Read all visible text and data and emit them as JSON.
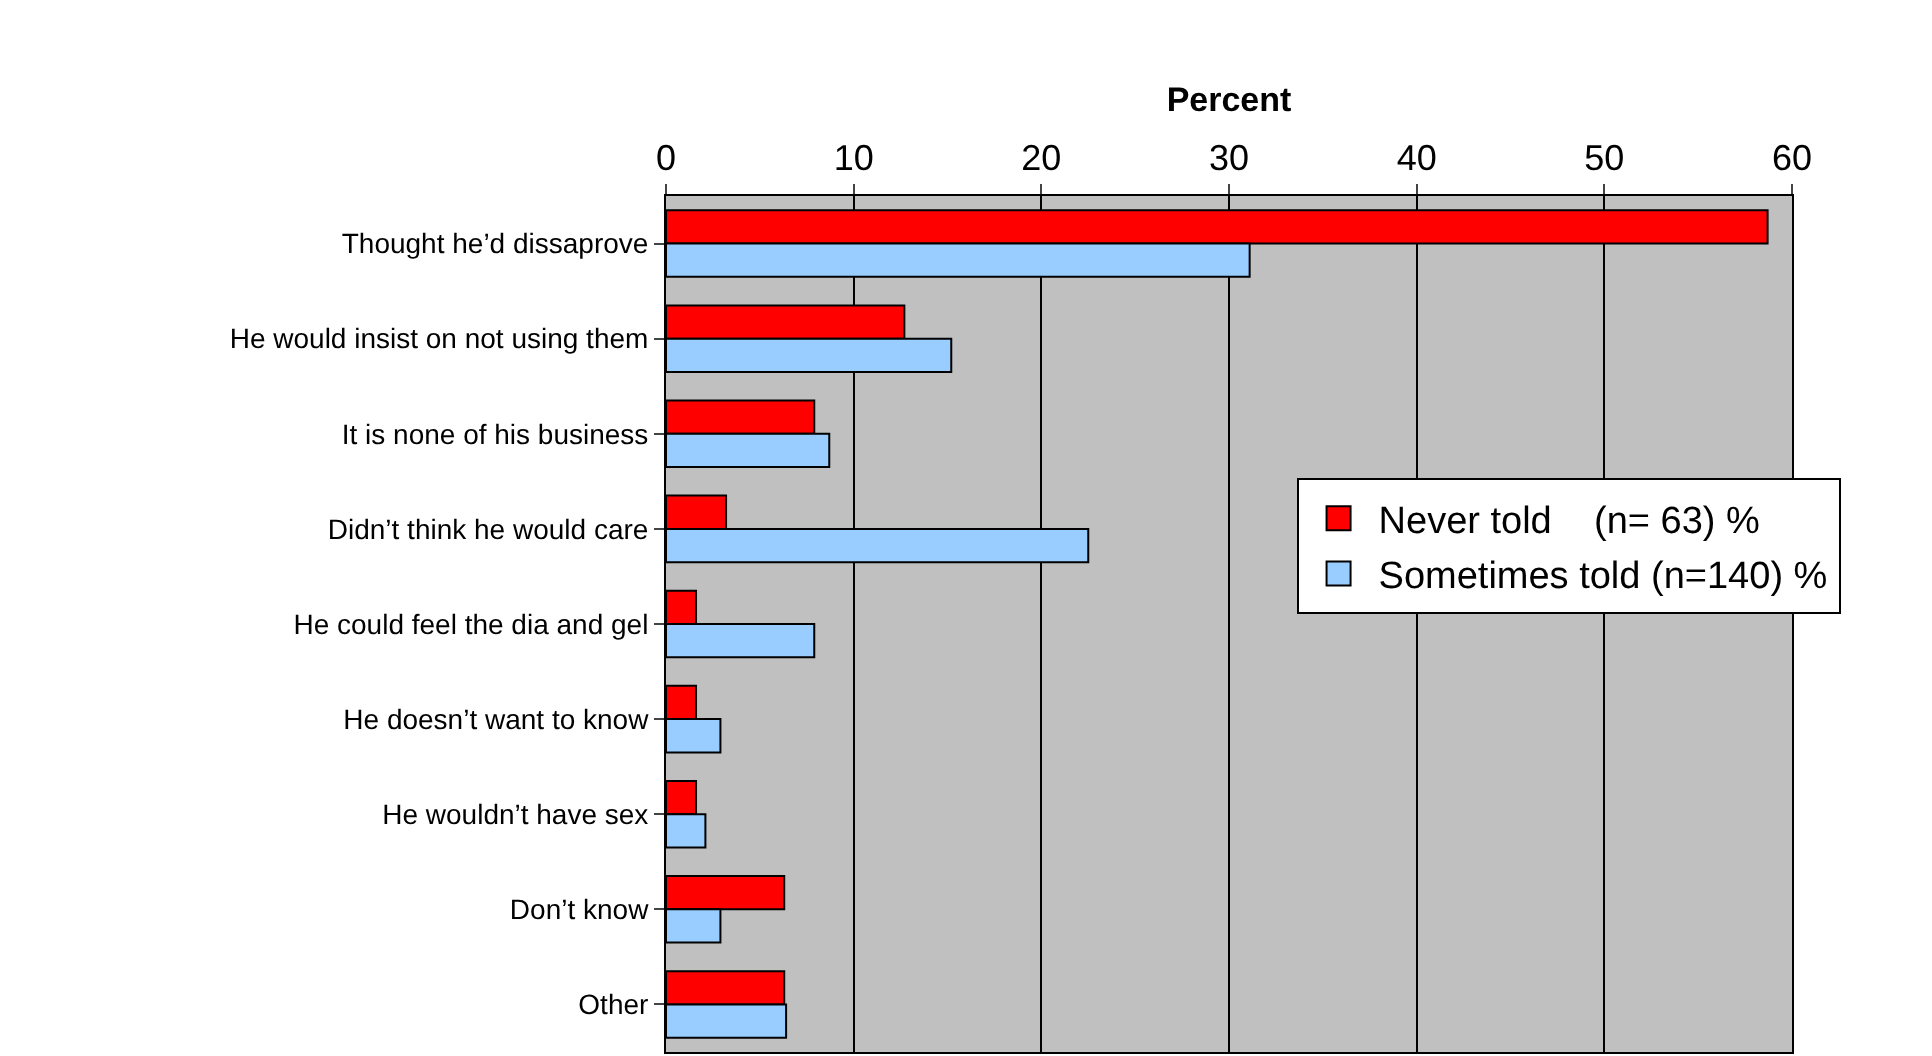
{
  "chart_data": {
    "type": "bar",
    "orientation": "horizontal",
    "xlabel": "Percent",
    "categories": [
      "Thought he’d dissaprove",
      "He would insist on not using them",
      "It is none of his business",
      "Didn’t think he would care",
      "He could feel the dia and gel",
      "He doesn’t want to know",
      "He wouldn’t have sex",
      "Don’t know",
      "Other"
    ],
    "series": [
      {
        "name": "Never told    (n= 63) %",
        "color": "#ff0000",
        "values": [
          58.7,
          12.7,
          7.9,
          3.2,
          1.6,
          1.6,
          1.6,
          6.3,
          6.3
        ]
      },
      {
        "name": "Sometimes told (n=140) %",
        "color": "#99ccff",
        "values": [
          31.1,
          15.2,
          8.7,
          22.5,
          7.9,
          2.9,
          2.1,
          2.9,
          6.4
        ]
      }
    ],
    "xlim": [
      0,
      60
    ],
    "xticks": [
      0,
      10,
      20,
      30,
      40,
      50,
      60
    ],
    "grid": "x",
    "legend": "right"
  }
}
